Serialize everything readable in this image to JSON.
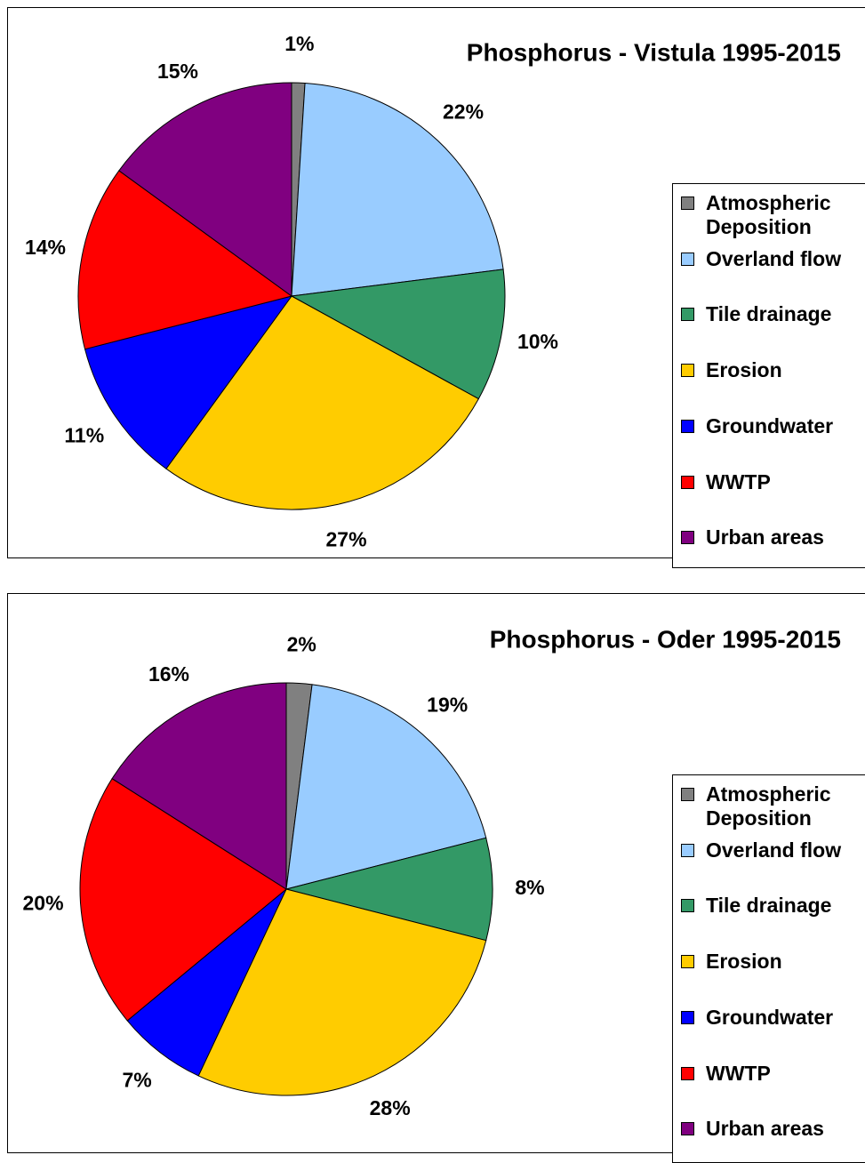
{
  "chart_data": [
    {
      "type": "pie",
      "title": "Phosphorus - Vistula 1995-2015",
      "categories": [
        "Atmospheric Deposition",
        "Overland flow",
        "Tile drainage",
        "Erosion",
        "Groundwater",
        "WWTP",
        "Urban areas"
      ],
      "values": [
        1,
        22,
        10,
        27,
        11,
        14,
        15
      ],
      "value_labels": [
        "1%",
        "22%",
        "10%",
        "27%",
        "11%",
        "14%",
        "15%"
      ],
      "colors": [
        "#808080",
        "#99ccff",
        "#339966",
        "#ffcc00",
        "#0000ff",
        "#ff0000",
        "#800080"
      ]
    },
    {
      "type": "pie",
      "title": "Phosphorus - Oder 1995-2015",
      "categories": [
        "Atmospheric Deposition",
        "Overland flow",
        "Tile drainage",
        "Erosion",
        "Groundwater",
        "WWTP",
        "Urban areas"
      ],
      "values": [
        2,
        19,
        8,
        28,
        7,
        20,
        16
      ],
      "value_labels": [
        "2%",
        "19%",
        "8%",
        "28%",
        "7%",
        "20%",
        "16%"
      ],
      "colors": [
        "#808080",
        "#99ccff",
        "#339966",
        "#ffcc00",
        "#0000ff",
        "#ff0000",
        "#800080"
      ]
    }
  ]
}
